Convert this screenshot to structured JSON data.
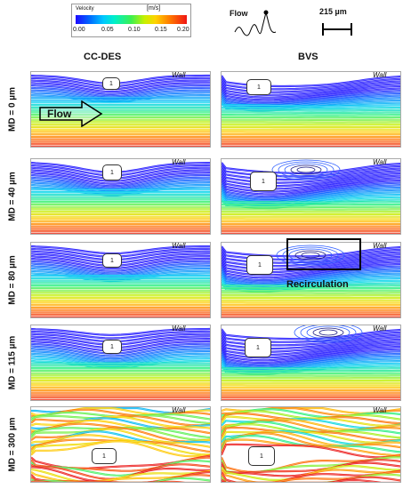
{
  "legend": {
    "title": "Velocity",
    "unit": "[m/s]",
    "ticks": [
      "0.00",
      "0.05",
      "0.10",
      "0.15",
      "0.20"
    ]
  },
  "flow_icon_label": "Flow",
  "scale_label": "215 µm",
  "columns": [
    "CC-DES",
    "BVS"
  ],
  "rows": [
    "MD = 0 µm",
    "MD = 40 µm",
    "MD = 80 µm",
    "MD = 115 µm",
    "MD = 300 µm"
  ],
  "wall_label": "Wall",
  "obstacle_label": "1",
  "flow_arrow_label": "Flow",
  "recirculation_label": "Recirculation",
  "colors": {
    "slow": "#1e28ff",
    "mid": "#3cf050",
    "fast": "#f01414"
  }
}
